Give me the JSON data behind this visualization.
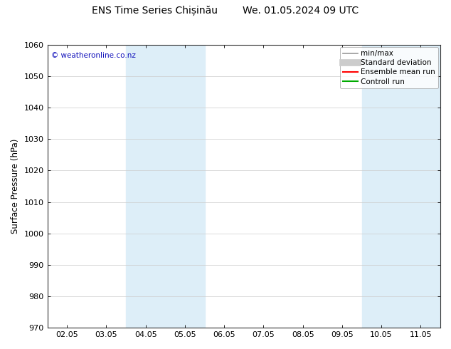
{
  "title_left": "ENS Time Series Chișinău",
  "title_right": "We. 01.05.2024 09 UTC",
  "ylabel": "Surface Pressure (hPa)",
  "ylim": [
    970,
    1060
  ],
  "yticks": [
    970,
    980,
    990,
    1000,
    1010,
    1020,
    1030,
    1040,
    1050,
    1060
  ],
  "xlabels": [
    "02.05",
    "03.05",
    "04.05",
    "05.05",
    "06.05",
    "07.05",
    "08.05",
    "09.05",
    "10.05",
    "11.05"
  ],
  "shaded_regions": [
    {
      "xstart": 2,
      "xend": 4,
      "color": "#ddeef8"
    },
    {
      "xstart": 8,
      "xend": 10,
      "color": "#ddeef8"
    }
  ],
  "watermark": "© weatheronline.co.nz",
  "watermark_color": "#1111bb",
  "legend_entries": [
    {
      "label": "min/max",
      "color": "#999999",
      "lw": 1.2
    },
    {
      "label": "Standard deviation",
      "color": "#cccccc",
      "lw": 7
    },
    {
      "label": "Ensemble mean run",
      "color": "#ff0000",
      "lw": 1.5
    },
    {
      "label": "Controll run",
      "color": "#00aa00",
      "lw": 1.5
    }
  ],
  "background_color": "#ffffff",
  "title_fontsize": 10,
  "axis_fontsize": 8.5,
  "tick_fontsize": 8,
  "legend_fontsize": 7.5
}
